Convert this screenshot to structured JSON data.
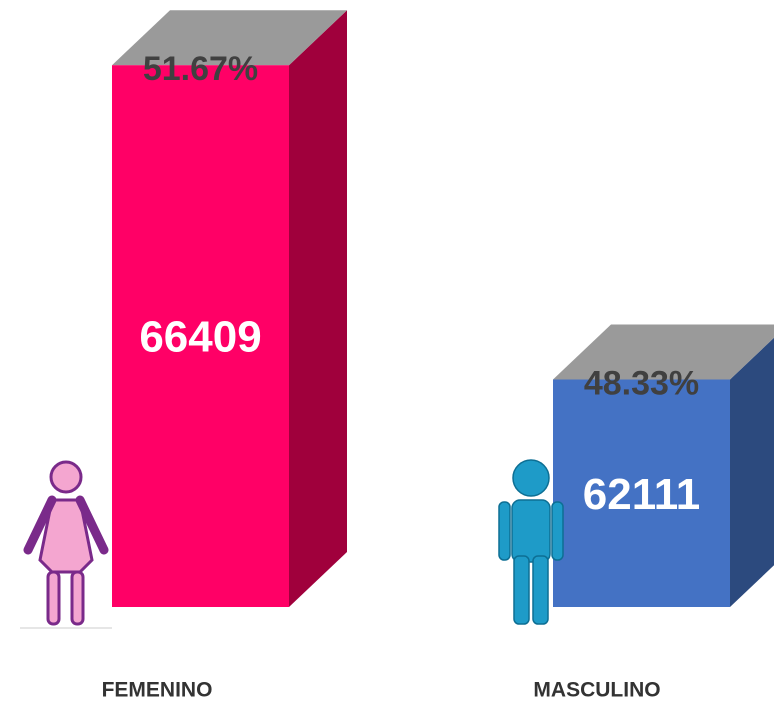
{
  "chart_data": {
    "type": "bar3d",
    "categories": [
      "FEMENINO",
      "MASCULINO"
    ],
    "values": [
      66409,
      62111
    ],
    "percentages": [
      51.67,
      48.33
    ],
    "percentage_labels": [
      "51.67%",
      "48.33%"
    ],
    "colors": [
      "#ff0066",
      "#4472c4"
    ],
    "side_colors": [
      "#a0003c",
      "#2c4a7e"
    ],
    "top_color": "#9a9a9a",
    "ylim": [
      59000,
      67000
    ]
  }
}
